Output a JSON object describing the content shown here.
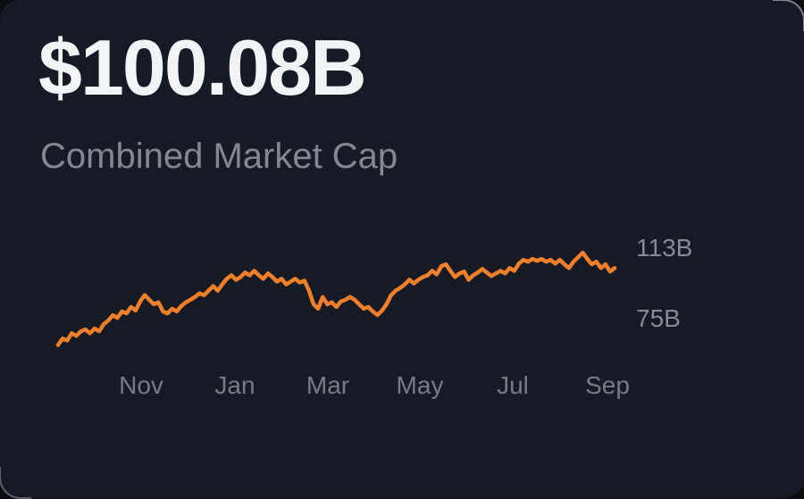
{
  "card": {
    "market_cap_value": "$100.08B",
    "market_cap_label": "Combined Market Cap"
  },
  "chart_data": {
    "type": "line",
    "title": "Combined Market Cap",
    "line_color": "#ef7f2b",
    "grid": false,
    "legend": false,
    "x_tick_labels": [
      "Nov",
      "Jan",
      "Mar",
      "May",
      "Jul",
      "Sep"
    ],
    "y_tick_labels": [
      "113B",
      "75B"
    ],
    "y_tick_values": [
      113,
      75
    ],
    "ylim": [
      58,
      115
    ],
    "unit": "USD billions",
    "series": [
      {
        "name": "Combined Market Cap",
        "values": [
          60.4,
          63.8,
          62.8,
          66.7,
          65.3,
          67.7,
          68.7,
          66.7,
          69.2,
          67.7,
          71.6,
          73.5,
          76.4,
          75.0,
          78.4,
          77.4,
          80.8,
          78.9,
          83.8,
          87.2,
          84.7,
          82.3,
          83.3,
          78.4,
          77.4,
          79.9,
          78.4,
          81.3,
          83.3,
          84.7,
          86.2,
          88.2,
          87.2,
          89.6,
          92.1,
          89.6,
          93.0,
          96.0,
          97.9,
          95.5,
          97.0,
          99.4,
          97.9,
          100.3,
          97.9,
          96.0,
          98.9,
          97.0,
          94.5,
          96.0,
          93.0,
          94.5,
          96.0,
          94.0,
          95.0,
          89.6,
          82.3,
          79.9,
          86.2,
          82.3,
          83.3,
          80.8,
          83.8,
          84.7,
          86.2,
          84.7,
          82.3,
          79.9,
          80.8,
          78.4,
          76.5,
          78.9,
          82.3,
          87.2,
          89.6,
          91.1,
          93.0,
          95.5,
          93.5,
          95.5,
          97.0,
          97.9,
          100.3,
          98.4,
          102.8,
          103.8,
          100.3,
          97.0,
          98.9,
          99.9,
          95.5,
          97.9,
          99.4,
          101.3,
          99.4,
          97.5,
          98.9,
          100.3,
          98.9,
          101.8,
          100.3,
          104.2,
          106.2,
          105.2,
          106.7,
          105.7,
          106.7,
          105.2,
          106.2,
          104.2,
          106.2,
          103.8,
          101.8,
          105.2,
          107.6,
          110.1,
          106.7,
          103.8,
          105.2,
          101.8,
          103.8,
          99.9,
          101.8
        ]
      }
    ]
  }
}
